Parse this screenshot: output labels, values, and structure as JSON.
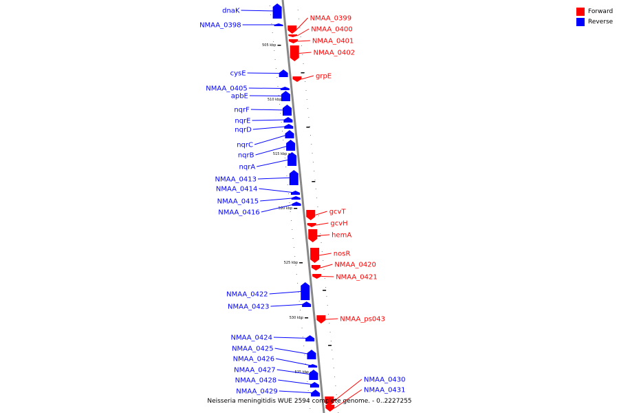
{
  "caption": "Neisseria meningitidis WUE 2594 complete genome. - 0..2227255",
  "legend": {
    "forward_label": "Forward",
    "forward_color": "#ff0000",
    "reverse_label": "Reverse",
    "reverse_color": "#0000ff"
  },
  "colors": {
    "forward": "#ff0000",
    "reverse": "#0000ff",
    "backbone": "#888888"
  },
  "scale_labels": [
    "505 kbp",
    "510 kbp",
    "515 kbp",
    "520 kbp",
    "525 kbp",
    "530 kbp",
    "535 kbp"
  ],
  "reverse_genes": [
    "dnaK",
    "NMAA_0398",
    "cysE",
    "NMAA_0405",
    "apbE",
    "nqrF",
    "nqrE",
    "nqrD",
    "nqrC",
    "nqrB",
    "nqrA",
    "NMAA_0413",
    "NMAA_0414",
    "NMAA_0415",
    "NMAA_0416",
    "NMAA_0422",
    "NMAA_0423",
    "NMAA_0424",
    "NMAA_0425",
    "NMAA_0426",
    "NMAA_0427",
    "NMAA_0428",
    "NMAA_0429"
  ],
  "forward_genes": [
    "NMAA_0399",
    "NMAA_0400",
    "NMAA_0401",
    "NMAA_0402",
    "grpE",
    "gcvT",
    "gcvH",
    "hemA",
    "nosR",
    "NMAA_0420",
    "NMAA_0421",
    "NMAA_ps043",
    "NMAA_0430",
    "NMAA_0431"
  ]
}
